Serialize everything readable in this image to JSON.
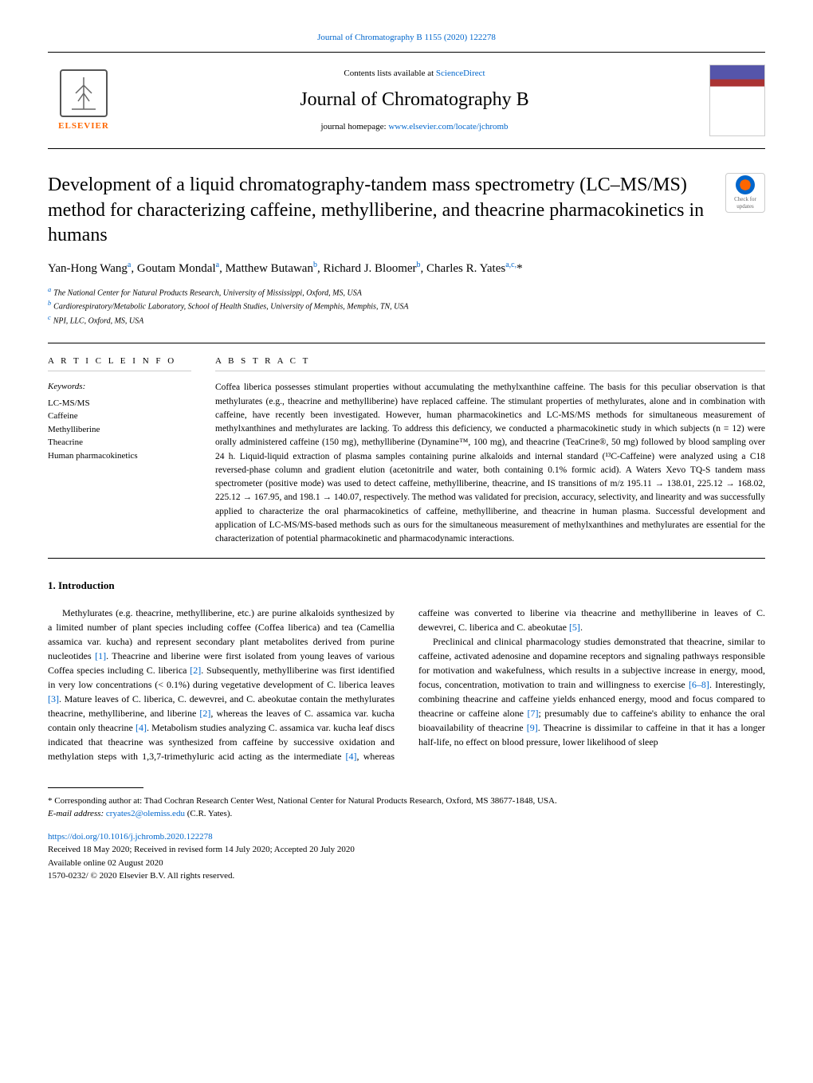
{
  "top_citation": "Journal of Chromatography B 1155 (2020) 122278",
  "header": {
    "contents_prefix": "Contents lists available at ",
    "contents_link": "ScienceDirect",
    "journal_name": "Journal of Chromatography B",
    "homepage_prefix": "journal homepage: ",
    "homepage_url": "www.elsevier.com/locate/jchromb",
    "publisher": "ELSEVIER"
  },
  "check_updates": "Check for updates",
  "title": "Development of a liquid chromatography-tandem mass spectrometry (LC–MS/MS) method for characterizing caffeine, methylliberine, and theacrine pharmacokinetics in humans",
  "authors_html": "Yan-Hong Wang<sup>a</sup>, Goutam Mondal<sup>a</sup>, Matthew Butawan<sup>b</sup>, Richard J. Bloomer<sup>b</sup>, Charles R. Yates<sup>a,c,</sup>*",
  "affiliations": {
    "a": "The National Center for Natural Products Research, University of Mississippi, Oxford, MS, USA",
    "b": "Cardiorespiratory/Metabolic Laboratory, School of Health Studies, University of Memphis, Memphis, TN, USA",
    "c": "NPI, LLC, Oxford, MS, USA"
  },
  "article_info_heading": "A R T I C L E  I N F O",
  "abstract_heading": "A B S T R A C T",
  "keywords_label": "Keywords:",
  "keywords": [
    "LC-MS/MS",
    "Caffeine",
    "Methylliberine",
    "Theacrine",
    "Human pharmacokinetics"
  ],
  "abstract": "Coffea liberica possesses stimulant properties without accumulating the methylxanthine caffeine. The basis for this peculiar observation is that methylurates (e.g., theacrine and methylliberine) have replaced caffeine. The stimulant properties of methylurates, alone and in combination with caffeine, have recently been investigated. However, human pharmacokinetics and LC-MS/MS methods for simultaneous measurement of methylxanthines and methylurates are lacking. To address this deficiency, we conducted a pharmacokinetic study in which subjects (n = 12) were orally administered caffeine (150 mg), methylliberine (Dynamine™, 100 mg), and theacrine (TeaCrine®, 50 mg) followed by blood sampling over 24 h. Liquid-liquid extraction of plasma samples containing purine alkaloids and internal standard (¹³C-Caffeine) were analyzed using a C18 reversed-phase column and gradient elution (acetonitrile and water, both containing 0.1% formic acid). A Waters Xevo TQ-S tandem mass spectrometer (positive mode) was used to detect caffeine, methylliberine, theacrine, and IS transitions of m/z 195.11 → 138.01, 225.12 → 168.02, 225.12 → 167.95, and 198.1 → 140.07, respectively. The method was validated for precision, accuracy, selectivity, and linearity and was successfully applied to characterize the oral pharmacokinetics of caffeine, methylliberine, and theacrine in human plasma. Successful development and application of LC-MS/MS-based methods such as ours for the simultaneous measurement of methylxanthines and methylurates are essential for the characterization of potential pharmacokinetic and pharmacodynamic interactions.",
  "section1_heading": "1. Introduction",
  "intro_para1": "Methylurates (e.g. theacrine, methylliberine, etc.) are purine alkaloids synthesized by a limited number of plant species including coffee (Coffea liberica) and tea (Camellia assamica var. kucha) and represent secondary plant metabolites derived from purine nucleotides [1]. Theacrine and liberine were first isolated from young leaves of various Coffea species including C. liberica [2]. Subsequently, methylliberine was first identified in very low concentrations (< 0.1%) during vegetative development of C. liberica leaves [3]. Mature leaves of C. liberica, C. dewevrei, and C. abeokutae contain the methylurates theacrine, methylliberine, and liberine [2], whereas the leaves of C. assamica var. kucha contain only theacrine [4]. Metabolism studies analyzing C. assamica var. kucha leaf discs indicated that theacrine was synthesized from caffeine by successive oxidation and methylation steps with 1,3,7-trimethyluric acid acting as the intermediate [4], whereas caffeine was converted to liberine via theacrine and methylliberine in leaves of C. dewevrei, C. liberica and C. abeokutae [5].",
  "intro_para2": "Preclinical and clinical pharmacology studies demonstrated that theacrine, similar to caffeine, activated adenosine and dopamine receptors and signaling pathways responsible for motivation and wakefulness, which results in a subjective increase in energy, mood, focus, concentration, motivation to train and willingness to exercise [6–8]. Interestingly, combining theacrine and caffeine yields enhanced energy, mood and focus compared to theacrine or caffeine alone [7]; presumably due to caffeine's ability to enhance the oral bioavailability of theacrine [9]. Theacrine is dissimilar to caffeine in that it has a longer half-life, no effect on blood pressure, lower likelihood of sleep",
  "footer": {
    "corresponding": "* Corresponding author at: Thad Cochran Research Center West, National Center for Natural Products Research, Oxford, MS 38677-1848, USA.",
    "email_label": "E-mail address: ",
    "email": "cryates2@olemiss.edu",
    "email_suffix": " (C.R. Yates).",
    "doi": "https://doi.org/10.1016/j.jchromb.2020.122278",
    "received": "Received 18 May 2020; Received in revised form 14 July 2020; Accepted 20 July 2020",
    "available": "Available online 02 August 2020",
    "copyright": "1570-0232/ © 2020 Elsevier B.V. All rights reserved."
  },
  "colors": {
    "link": "#0066cc",
    "publisher": "#ff6600"
  }
}
